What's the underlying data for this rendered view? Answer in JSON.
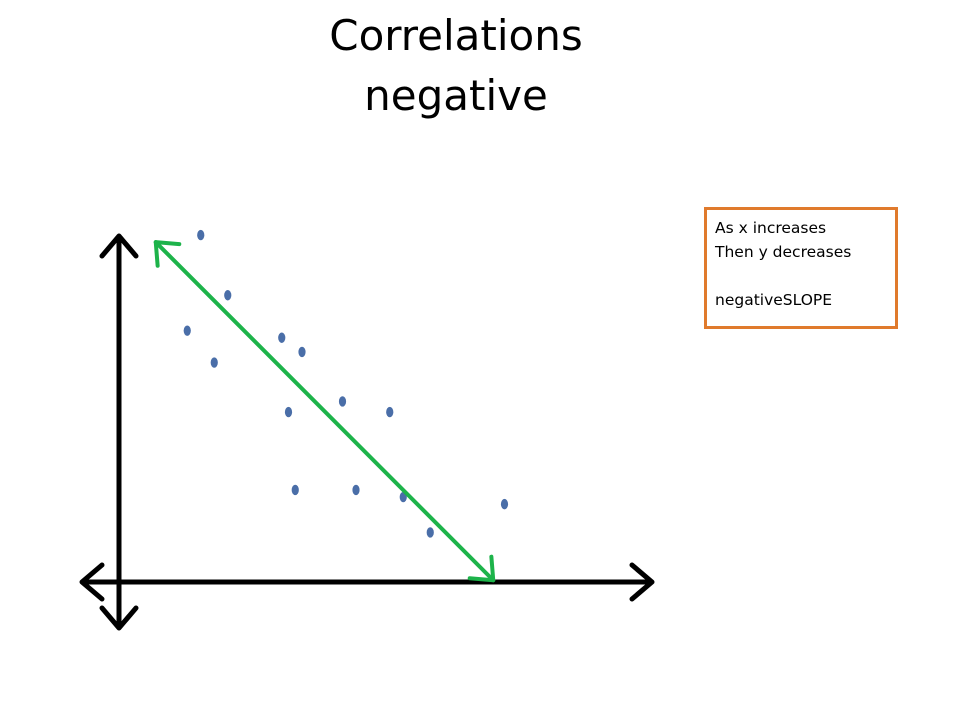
{
  "title": {
    "line1": "Correlations",
    "line2": "negative"
  },
  "note": {
    "line1": "As x increases",
    "line2": "Then y decreases",
    "line3": "negativeSLOPE"
  },
  "colors": {
    "axes": "#000000",
    "points": "#4a6ea8",
    "trend_line": "#1db34a",
    "note_border": "#e07a2c"
  },
  "chart_data": {
    "type": "scatter",
    "title": "",
    "xlabel": "",
    "ylabel": "",
    "xlim": [
      0,
      10
    ],
    "ylim": [
      0,
      10
    ],
    "axes_arrows": "both-ends",
    "grid": false,
    "points": [
      {
        "x": 1.35,
        "y": 9.8
      },
      {
        "x": 1.95,
        "y": 8.1
      },
      {
        "x": 1.05,
        "y": 7.1
      },
      {
        "x": 1.65,
        "y": 6.2
      },
      {
        "x": 3.15,
        "y": 6.9
      },
      {
        "x": 3.6,
        "y": 6.5
      },
      {
        "x": 3.3,
        "y": 4.8
      },
      {
        "x": 4.5,
        "y": 5.1
      },
      {
        "x": 5.55,
        "y": 4.8
      },
      {
        "x": 3.45,
        "y": 2.6
      },
      {
        "x": 4.8,
        "y": 2.6
      },
      {
        "x": 5.85,
        "y": 2.4
      },
      {
        "x": 6.45,
        "y": 1.4
      },
      {
        "x": 8.1,
        "y": 2.2
      }
    ],
    "trend_line": {
      "from": {
        "x": 0.35,
        "y": 9.6
      },
      "to": {
        "x": 7.85,
        "y": 0.05
      },
      "arrows": "both-ends"
    }
  }
}
